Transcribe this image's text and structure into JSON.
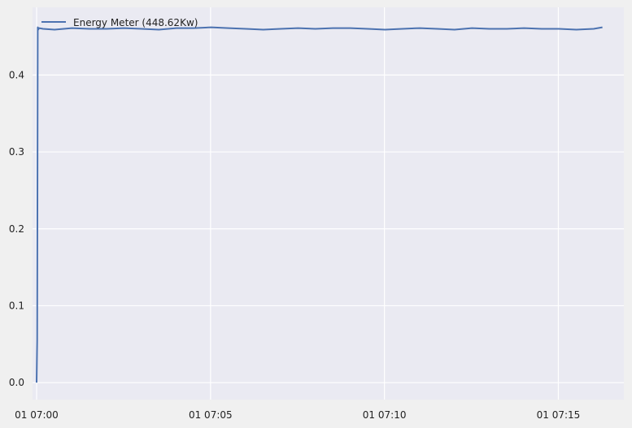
{
  "chart_data": {
    "type": "line",
    "title": "",
    "xlabel": "",
    "ylabel": "",
    "x_range": [
      "01 06:59:52",
      "01 07:16:52"
    ],
    "ylim": [
      -0.022,
      0.488
    ],
    "grid": true,
    "legend_placement": "top-left",
    "x_ticks": [
      {
        "time": "01 06:59:59",
        "label": "01 07:00"
      },
      {
        "time": "01 07:04:59",
        "label": "01 07:05"
      },
      {
        "time": "01 07:09:59",
        "label": "01 07:10"
      },
      {
        "time": "01 07:14:59",
        "label": "01 07:15"
      }
    ],
    "y_ticks": [
      {
        "value": 0.0,
        "label": "0.0"
      },
      {
        "value": 0.1,
        "label": "0.1"
      },
      {
        "value": 0.2,
        "label": "0.2"
      },
      {
        "value": 0.3,
        "label": "0.3"
      },
      {
        "value": 0.4,
        "label": "0.4"
      }
    ],
    "series": [
      {
        "name": "Energy Meter (448.62Kw)",
        "color": "#4c72b0",
        "x": [
          "01 06:59:59",
          "01 07:00:00",
          "01 07:00:01",
          "01 07:00:02",
          "01 07:00:03",
          "01 07:00:10",
          "01 07:00:30",
          "01 07:01:00",
          "01 07:01:30",
          "01 07:02:00",
          "01 07:02:30",
          "01 07:03:00",
          "01 07:03:30",
          "01 07:04:00",
          "01 07:04:30",
          "01 07:05:00",
          "01 07:05:30",
          "01 07:06:00",
          "01 07:06:30",
          "01 07:07:00",
          "01 07:07:30",
          "01 07:08:00",
          "01 07:08:30",
          "01 07:09:00",
          "01 07:09:30",
          "01 07:10:00",
          "01 07:10:30",
          "01 07:11:00",
          "01 07:11:30",
          "01 07:12:00",
          "01 07:12:30",
          "01 07:13:00",
          "01 07:13:30",
          "01 07:14:00",
          "01 07:14:30",
          "01 07:15:00",
          "01 07:15:30",
          "01 07:16:00",
          "01 07:16:15"
        ],
        "y": [
          0.0,
          0.055,
          0.462,
          0.459,
          0.461,
          0.46,
          0.459,
          0.461,
          0.46,
          0.46,
          0.461,
          0.46,
          0.459,
          0.461,
          0.461,
          0.462,
          0.461,
          0.46,
          0.459,
          0.46,
          0.461,
          0.46,
          0.461,
          0.461,
          0.46,
          0.459,
          0.46,
          0.461,
          0.46,
          0.459,
          0.461,
          0.46,
          0.46,
          0.461,
          0.46,
          0.46,
          0.459,
          0.46,
          0.462
        ]
      }
    ]
  }
}
